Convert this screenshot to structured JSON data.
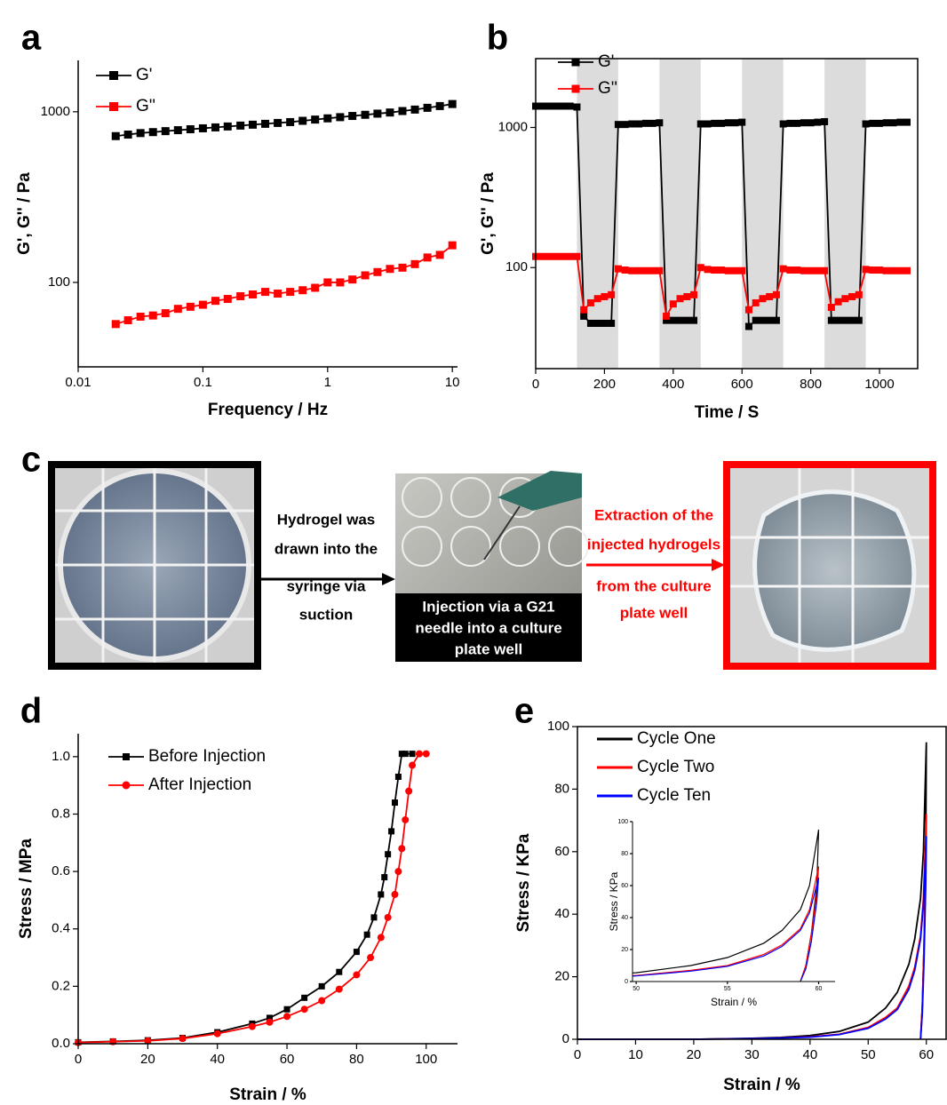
{
  "chart_data": [
    {
      "type": "line",
      "panel": "a",
      "x_label": "Frequency / Hz",
      "y_label": "G', G'' / Pa",
      "xscale": "log",
      "yscale": "log",
      "xlim": [
        0.01,
        11
      ],
      "ylim": [
        32,
        2000
      ],
      "xticks": [
        0.01,
        0.1,
        1,
        10
      ],
      "yticks": [
        100,
        1000
      ],
      "x": [
        0.02,
        0.0251,
        0.0316,
        0.0398,
        0.0501,
        0.0631,
        0.0794,
        0.1,
        0.126,
        0.158,
        0.2,
        0.251,
        0.316,
        0.398,
        0.501,
        0.631,
        0.794,
        1,
        1.26,
        1.58,
        2,
        2.51,
        3.16,
        3.98,
        5.01,
        6.31,
        7.94,
        10
      ],
      "series": [
        {
          "name": "G'",
          "color": "#000000",
          "marker": "square",
          "values": [
            720,
            735,
            750,
            760,
            770,
            780,
            790,
            800,
            810,
            820,
            830,
            840,
            850,
            860,
            870,
            885,
            900,
            915,
            930,
            945,
            960,
            975,
            990,
            1010,
            1030,
            1055,
            1080,
            1110
          ]
        },
        {
          "name": "G''",
          "color": "#ff0000",
          "marker": "square",
          "values": [
            57,
            60,
            63,
            64,
            66,
            70,
            72,
            74,
            78,
            80,
            83,
            85,
            88,
            86,
            88,
            90,
            93,
            100,
            100,
            104,
            110,
            115,
            120,
            122,
            128,
            140,
            145,
            165
          ]
        }
      ]
    },
    {
      "type": "line",
      "panel": "b",
      "x_label": "Time / S",
      "y_label": "G', G'' / Pa",
      "yscale": "log",
      "xlim": [
        0,
        1111
      ],
      "ylim": [
        19,
        3100
      ],
      "xticks": [
        0,
        200,
        400,
        600,
        800,
        1000
      ],
      "yticks": [
        100,
        1000
      ],
      "shaded_regions": [
        [
          120,
          240
        ],
        [
          360,
          480
        ],
        [
          600,
          720
        ],
        [
          840,
          960
        ]
      ],
      "shade_color": "#dcdcdc",
      "x": [
        0,
        20,
        40,
        60,
        80,
        100,
        120,
        140,
        160,
        180,
        200,
        220,
        240,
        260,
        280,
        300,
        320,
        340,
        360,
        380,
        400,
        420,
        440,
        460,
        480,
        500,
        520,
        540,
        560,
        580,
        600,
        620,
        640,
        660,
        680,
        700,
        720,
        740,
        760,
        780,
        800,
        820,
        840,
        860,
        880,
        900,
        920,
        940,
        960,
        980,
        1000,
        1020,
        1040,
        1060,
        1080
      ],
      "series": [
        {
          "name": "G'",
          "color": "#000000",
          "marker": "square",
          "values": [
            1420,
            1420,
            1420,
            1420,
            1420,
            1420,
            1400,
            45,
            40,
            40,
            40,
            40,
            1050,
            1050,
            1060,
            1060,
            1070,
            1070,
            1080,
            42,
            42,
            42,
            42,
            42,
            1060,
            1060,
            1070,
            1070,
            1080,
            1080,
            1090,
            38,
            42,
            42,
            42,
            42,
            1060,
            1070,
            1070,
            1080,
            1080,
            1090,
            1100,
            42,
            42,
            42,
            42,
            42,
            1060,
            1070,
            1070,
            1080,
            1080,
            1090,
            1090
          ]
        },
        {
          "name": "G''",
          "color": "#ff0000",
          "marker": "square",
          "values": [
            120,
            120,
            120,
            120,
            120,
            120,
            120,
            50,
            56,
            60,
            62,
            64,
            98,
            96,
            95,
            95,
            95,
            95,
            95,
            45,
            55,
            60,
            62,
            64,
            100,
            97,
            96,
            96,
            95,
            95,
            95,
            50,
            56,
            60,
            62,
            64,
            98,
            96,
            96,
            95,
            95,
            95,
            95,
            52,
            57,
            60,
            62,
            64,
            97,
            96,
            96,
            95,
            95,
            95,
            95
          ]
        }
      ]
    },
    {
      "type": "line",
      "panel": "d",
      "x_label": "Strain / %",
      "y_label": "Stress / MPa",
      "xlim": [
        0,
        109
      ],
      "ylim": [
        0,
        1.08
      ],
      "xticks": [
        0,
        20,
        40,
        60,
        80,
        100
      ],
      "yticks": [
        {
          "value": 0,
          "label": "0.0"
        },
        0.2,
        0.4,
        0.6,
        0.8,
        {
          "value": 1,
          "label": "1.0"
        }
      ],
      "series": [
        {
          "name": "Before Injection",
          "color": "#000000",
          "marker": "square",
          "x": [
            0,
            10,
            20,
            30,
            40,
            50,
            55,
            60,
            65,
            70,
            75,
            80,
            83,
            85,
            87,
            88,
            89,
            90,
            91,
            92,
            93,
            94,
            96
          ],
          "values": [
            0.005,
            0.008,
            0.012,
            0.02,
            0.04,
            0.07,
            0.09,
            0.12,
            0.16,
            0.2,
            0.25,
            0.32,
            0.38,
            0.44,
            0.52,
            0.58,
            0.66,
            0.74,
            0.84,
            0.93,
            1.01,
            1.01,
            1.01
          ]
        },
        {
          "name": "After Injection",
          "color": "#ff0000",
          "marker": "circle",
          "x": [
            0,
            10,
            20,
            30,
            40,
            50,
            55,
            60,
            65,
            70,
            75,
            80,
            84,
            87,
            89,
            91,
            92,
            93,
            94,
            95,
            96,
            98,
            100
          ],
          "values": [
            0.004,
            0.007,
            0.01,
            0.018,
            0.035,
            0.06,
            0.075,
            0.095,
            0.12,
            0.15,
            0.19,
            0.24,
            0.3,
            0.37,
            0.44,
            0.52,
            0.6,
            0.68,
            0.78,
            0.88,
            0.97,
            1.01,
            1.01
          ]
        }
      ]
    },
    {
      "type": "line",
      "panel": "e",
      "x_label": "Strain / %",
      "y_label": "Stress / KPa",
      "xlim": [
        0,
        63.4
      ],
      "ylim": [
        0,
        100
      ],
      "xticks": [
        0,
        10,
        20,
        30,
        40,
        50,
        60
      ],
      "yticks": [
        0,
        20,
        40,
        60,
        80,
        100
      ],
      "x": [
        0,
        10,
        20,
        30,
        35,
        40,
        45,
        50,
        53,
        55,
        57,
        58,
        59,
        59.5,
        60,
        59.9,
        59.6,
        59.3,
        59
      ],
      "series": [
        {
          "name": "Cycle One",
          "color": "#000000",
          "values": [
            0,
            0,
            0,
            0.3,
            0.6,
            1.2,
            2.5,
            5.5,
            10,
            15,
            24,
            32,
            45,
            60,
            95,
            60,
            30,
            10,
            0
          ]
        },
        {
          "name": "Cycle Two",
          "color": "#ff0000",
          "values": [
            0,
            0,
            0,
            0.2,
            0.4,
            0.8,
            1.6,
            3.8,
            7,
            10,
            17,
            23,
            33,
            45,
            72,
            55,
            30,
            10,
            0
          ]
        },
        {
          "name": "Cycle Ten",
          "color": "#0000ff",
          "values": [
            0,
            0,
            0,
            0.2,
            0.4,
            0.7,
            1.5,
            3.5,
            6.5,
            9.5,
            16,
            22,
            32,
            43,
            65,
            50,
            25,
            8,
            0
          ]
        }
      ],
      "inset": {
        "x_label": "Strain / %",
        "y_label": "Stress / KPa",
        "xlim": [
          49.8,
          60.9
        ],
        "ylim": [
          0,
          100
        ],
        "xticks": [
          50,
          55,
          60
        ],
        "yticks": [
          0,
          20,
          40,
          60,
          80,
          100
        ]
      }
    }
  ],
  "panel_c": {
    "panel": "c",
    "arrow1_lines": [
      "Hydrogel was",
      "drawn into the",
      "syringe via",
      "suction"
    ],
    "caption_lines": [
      "Injection via a G21",
      "needle into a culture",
      "plate well"
    ],
    "arrow2_lines": [
      "Extraction of the",
      "injected hydrogels",
      "from the culture",
      "plate well"
    ]
  }
}
